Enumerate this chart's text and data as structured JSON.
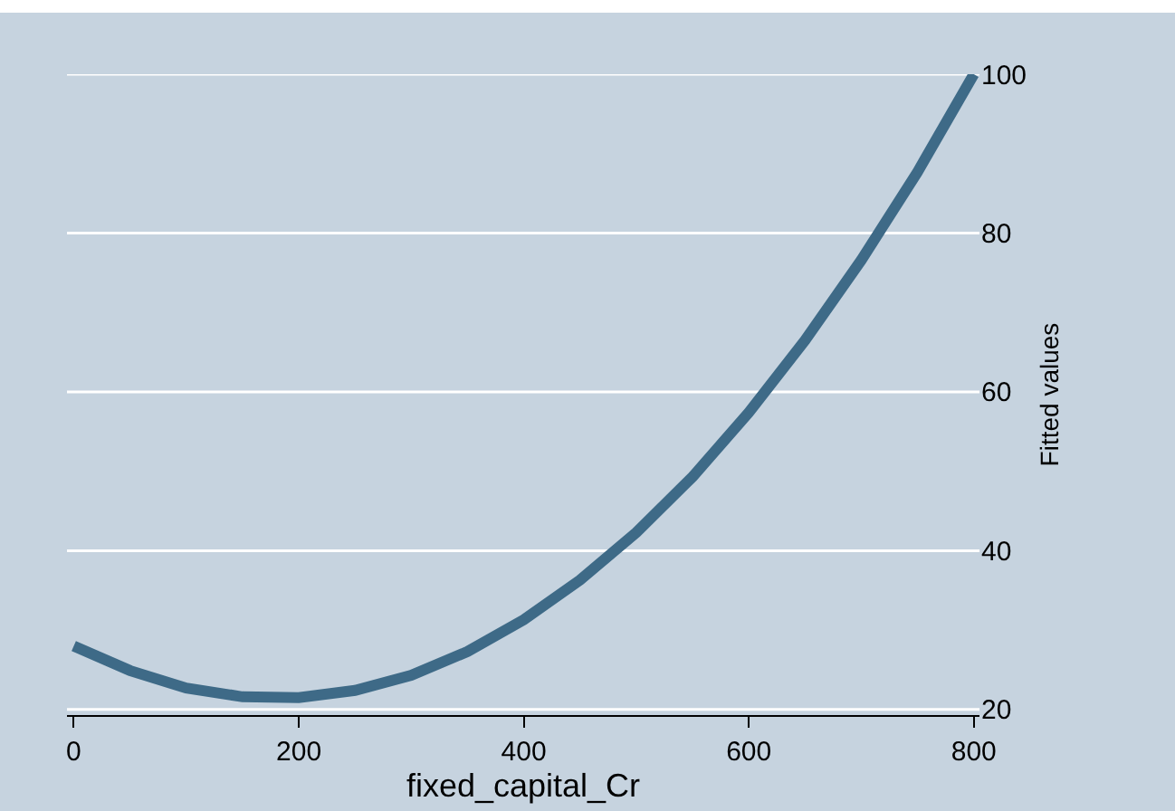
{
  "chart_data": {
    "type": "line",
    "xlabel": "fixed_capital_Cr",
    "ylabel": "Fitted values",
    "x": [
      0,
      50,
      100,
      150,
      200,
      250,
      300,
      350,
      400,
      450,
      500,
      550,
      600,
      650,
      700,
      750,
      800
    ],
    "series": [
      {
        "color": "#3e6a87",
        "values": [
          28.0,
          24.9,
          22.7,
          21.6,
          21.5,
          22.4,
          24.3,
          27.3,
          31.3,
          36.3,
          42.3,
          49.3,
          57.4,
          66.5,
          76.6,
          87.7,
          100
        ]
      }
    ],
    "xlim": [
      -6,
      805
    ],
    "ylim": [
      19.3,
      100
    ],
    "xticks": [
      0,
      200,
      400,
      600,
      800
    ],
    "yticks": [
      20,
      40,
      60,
      80,
      100
    ],
    "grid": "y",
    "marker": "none",
    "line_style": "solid"
  }
}
